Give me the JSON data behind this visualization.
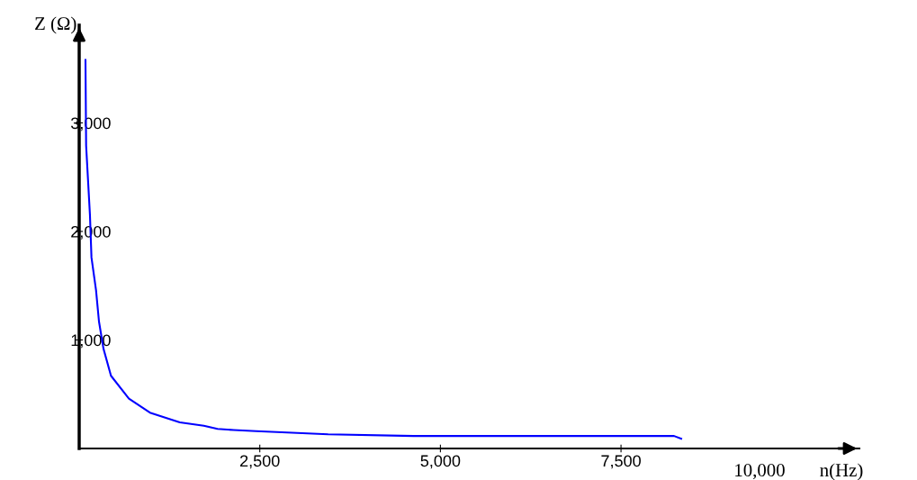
{
  "chart_data": {
    "type": "line",
    "xlabel": "n(Hz)",
    "ylabel": "Z (Ω)",
    "annotations": [
      "10,000"
    ],
    "x": [
      87,
      96,
      149,
      170,
      233,
      274,
      336,
      440,
      688,
      979,
      1306,
      1393,
      1725,
      1915,
      2139,
      2450,
      3445,
      4627,
      8234,
      8333
    ],
    "series": [
      {
        "color": "#0000ff",
        "values": [
          3580,
          2790,
          2150,
          1760,
          1460,
          1170,
          920,
          670,
          460,
          330,
          260,
          240,
          210,
          180,
          170,
          160,
          130,
          115,
          115,
          90
        ]
      }
    ],
    "xlim": [
      0,
      10800
    ],
    "ylim": [
      0,
      3900
    ],
    "xticks": [
      {
        "value": 2500,
        "label": "2,500"
      },
      {
        "value": 5000,
        "label": "5,000"
      },
      {
        "value": 7500,
        "label": "7,500"
      }
    ],
    "yticks": [
      {
        "value": 1000,
        "label": "1,000"
      },
      {
        "value": 2000,
        "label": "2,000"
      },
      {
        "value": 3000,
        "label": "3,000"
      }
    ],
    "grid": false,
    "legend": false,
    "marker": "none",
    "line_style": "solid"
  }
}
